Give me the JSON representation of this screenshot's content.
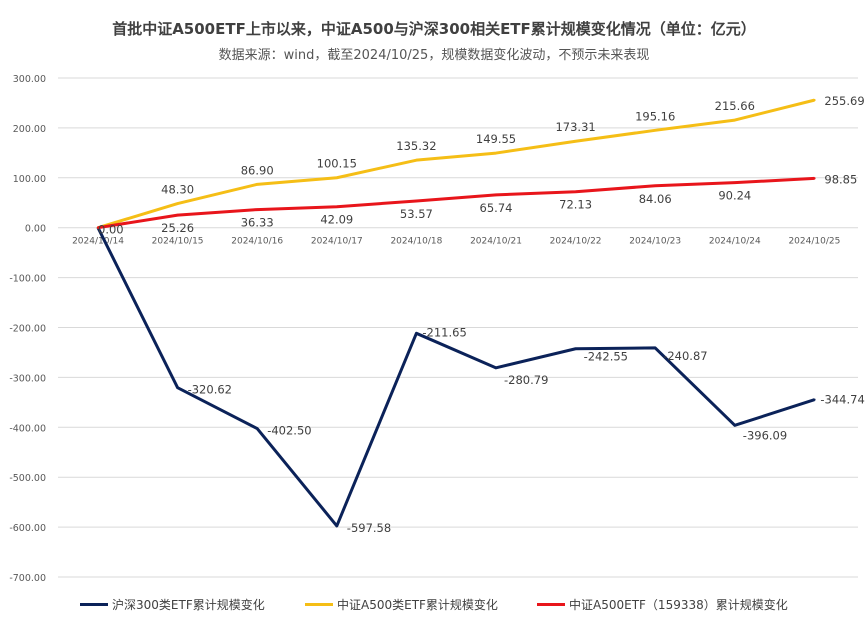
{
  "title": "首批中证A500ETF上市以来，中证A500与沪深300相关ETF累计规模变化情况（单位：亿元）",
  "subtitle": "数据来源：wind，截至2024/10/25，规模数据变化波动，不预示未来表现",
  "chart_data": {
    "type": "line",
    "categories": [
      "2024/10/14",
      "2024/10/15",
      "2024/10/16",
      "2024/10/17",
      "2024/10/18",
      "2024/10/21",
      "2024/10/22",
      "2024/10/23",
      "2024/10/24",
      "2024/10/25"
    ],
    "y_ticks": [
      "300.00",
      "200.00",
      "100.00",
      "0.00",
      "-100.00",
      "-200.00",
      "-300.00",
      "-400.00",
      "-500.00",
      "-600.00",
      "-700.00"
    ],
    "ylim": [
      -700,
      300
    ],
    "grid": true,
    "legend_position": "bottom",
    "series": [
      {
        "name": "沪深300类ETF累计规模变化",
        "color": "#0b2259",
        "values": [
          0,
          -320.62,
          -402.5,
          -597.58,
          -211.65,
          -280.79,
          -242.55,
          -240.87,
          -396.09,
          -344.74
        ],
        "labels": [
          "",
          "-320.62",
          "-402.50",
          "-597.58",
          "-211.65",
          "-280.79",
          "-242.55",
          "-240.87",
          "-396.09",
          "-344.74"
        ]
      },
      {
        "name": "中证A500类ETF累计规模变化",
        "color": "#f5be16",
        "values": [
          0,
          48.3,
          86.9,
          100.15,
          135.32,
          149.55,
          173.31,
          195.16,
          215.66,
          255.69
        ],
        "labels": [
          "",
          "48.30",
          "86.90",
          "100.15",
          "135.32",
          "149.55",
          "173.31",
          "195.16",
          "215.66",
          "255.69"
        ]
      },
      {
        "name": "中证A500ETF（159338）累计规模变化",
        "color": "#e8151b",
        "values": [
          0,
          25.26,
          36.33,
          42.09,
          53.57,
          65.74,
          72.13,
          84.06,
          90.24,
          98.85
        ],
        "labels": [
          "0.00",
          "25.26",
          "36.33",
          "42.09",
          "53.57",
          "65.74",
          "72.13",
          "84.06",
          "90.24",
          "98.85"
        ]
      }
    ]
  }
}
